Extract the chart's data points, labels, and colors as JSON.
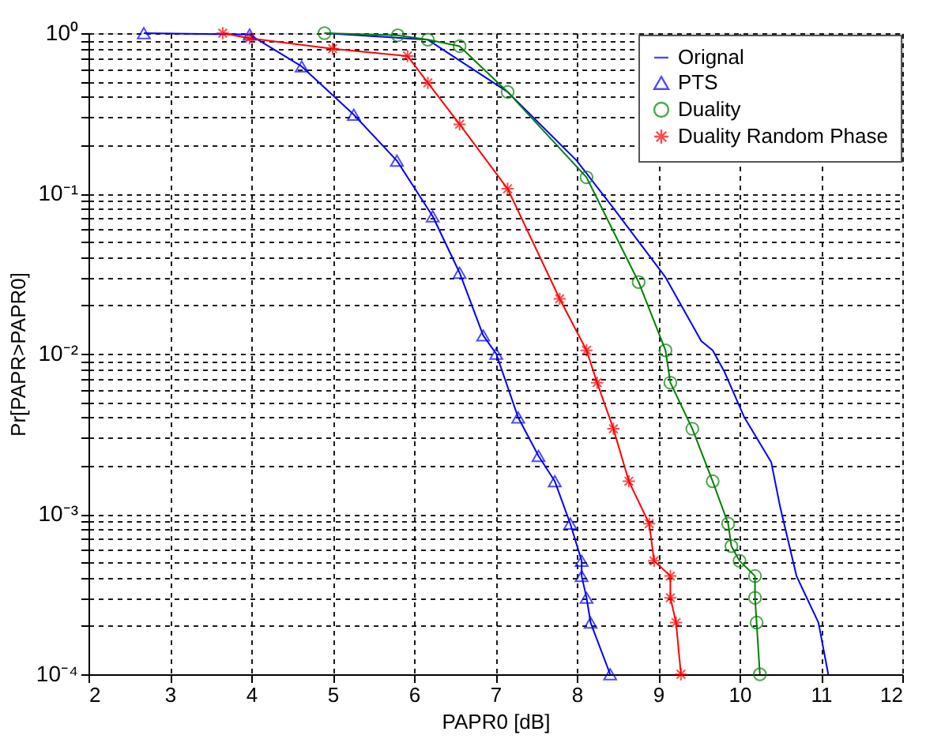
{
  "chart_data": {
    "type": "line",
    "xlabel": "PAPR0 [dB]",
    "ylabel": "Pr[PAPR>PAPR0]",
    "log": "y",
    "grid": true,
    "legend": "top right",
    "xlim": [
      2,
      12
    ],
    "xticks": [
      2,
      3,
      4,
      5,
      6,
      7,
      8,
      9,
      10,
      11,
      12
    ],
    "ylim": [
      0.0001,
      1
    ],
    "yticks": [
      {
        "value": 0.0001,
        "label": "10⁻⁴"
      },
      {
        "value": 0.0002,
        "label": null
      },
      {
        "value": 0.0003,
        "label": null
      },
      {
        "value": 0.0004,
        "label": null
      },
      {
        "value": 0.0005,
        "label": null
      },
      {
        "value": 0.0006,
        "label": null
      },
      {
        "value": 0.0007,
        "label": null
      },
      {
        "value": 0.0008,
        "label": null
      },
      {
        "value": 0.0009,
        "label": null
      },
      {
        "value": 0.001,
        "label": "10⁻³"
      },
      {
        "value": 0.002,
        "label": null
      },
      {
        "value": 0.003,
        "label": null
      },
      {
        "value": 0.004,
        "label": null
      },
      {
        "value": 0.005,
        "label": null
      },
      {
        "value": 0.006,
        "label": null
      },
      {
        "value": 0.007,
        "label": null
      },
      {
        "value": 0.008,
        "label": null
      },
      {
        "value": 0.009,
        "label": null
      },
      {
        "value": 0.01,
        "label": "10⁻²"
      },
      {
        "value": 0.02,
        "label": null
      },
      {
        "value": 0.03,
        "label": null
      },
      {
        "value": 0.04,
        "label": null
      },
      {
        "value": 0.05,
        "label": null
      },
      {
        "value": 0.06,
        "label": null
      },
      {
        "value": 0.07,
        "label": null
      },
      {
        "value": 0.08,
        "label": null
      },
      {
        "value": 0.09,
        "label": null
      },
      {
        "value": 0.1,
        "label": "10⁻¹"
      },
      {
        "value": 0.2,
        "label": null
      },
      {
        "value": 0.3,
        "label": null
      },
      {
        "value": 0.4,
        "label": null
      },
      {
        "value": 0.5,
        "label": null
      },
      {
        "value": 0.6,
        "label": null
      },
      {
        "value": 0.7,
        "label": null
      },
      {
        "value": 0.8,
        "label": null
      },
      {
        "value": 0.9,
        "label": null
      },
      {
        "value": 1,
        "label": "10⁰"
      }
    ],
    "series": [
      {
        "name": "Orignal",
        "color": "#0000ff",
        "marker": "none",
        "x": [
          4.9,
          6.17,
          7.15,
          8.0,
          8.45,
          9.09,
          9.53,
          9.67,
          9.81,
          10.06,
          10.39,
          10.5,
          10.7,
          10.97,
          11.09
        ],
        "values": [
          1.0,
          0.91,
          0.43,
          0.16,
          0.081,
          0.03,
          0.012,
          0.0105,
          0.0078,
          0.004,
          0.0021,
          0.0011,
          0.00041,
          0.00021,
          0.0001
        ]
      },
      {
        "name": "PTS",
        "color": "#0000ff",
        "marker": "triangle",
        "x": [
          2.68,
          3.98,
          4.62,
          5.26,
          5.79,
          6.23,
          6.56,
          6.85,
          7.01,
          7.28,
          7.53,
          7.73,
          7.92,
          8.06,
          8.06,
          8.12,
          8.17,
          8.41
        ],
        "values": [
          1.0,
          0.98,
          0.62,
          0.31,
          0.16,
          0.072,
          0.032,
          0.013,
          0.01,
          0.004,
          0.0023,
          0.0016,
          0.00087,
          0.00051,
          0.00041,
          0.0003,
          0.00021,
          0.0001
        ]
      },
      {
        "name": "Duality",
        "color": "#008000",
        "marker": "circle",
        "x": [
          4.9,
          5.8,
          6.17,
          6.56,
          7.15,
          8.12,
          8.76,
          9.09,
          9.15,
          9.42,
          9.67,
          9.86,
          9.9,
          10.0,
          10.19,
          10.19,
          10.21,
          10.25
        ],
        "values": [
          1.0,
          0.97,
          0.91,
          0.83,
          0.43,
          0.126,
          0.028,
          0.0105,
          0.0066,
          0.0034,
          0.0016,
          0.00087,
          0.00063,
          0.00051,
          0.00041,
          0.0003,
          0.00021,
          0.0001
        ]
      },
      {
        "name": "Duality Random Phase",
        "color": "#ff0000",
        "marker": "cross",
        "x": [
          3.65,
          3.98,
          5.0,
          5.92,
          6.17,
          6.56,
          7.15,
          7.79,
          8.12,
          8.25,
          8.45,
          8.64,
          8.89,
          8.95,
          9.15,
          9.15,
          9.22,
          9.28
        ],
        "values": [
          1.0,
          0.93,
          0.8,
          0.72,
          0.49,
          0.27,
          0.107,
          0.022,
          0.0105,
          0.0066,
          0.0034,
          0.0016,
          0.00087,
          0.00051,
          0.00041,
          0.0003,
          0.00021,
          0.0001
        ]
      }
    ]
  }
}
